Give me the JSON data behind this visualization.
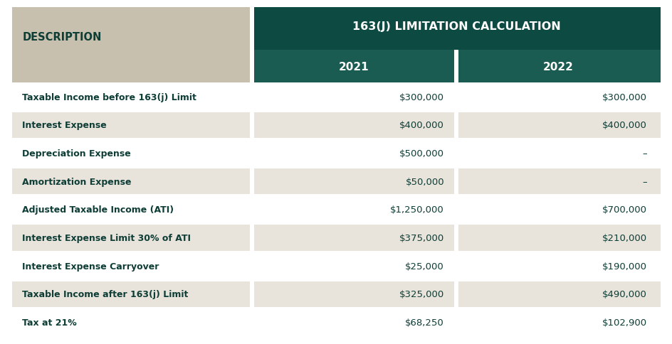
{
  "header_main": "163(J) LIMITATION CALCULATION",
  "header_desc": "DESCRIPTION",
  "col_headers": [
    "2021",
    "2022"
  ],
  "rows": [
    [
      "Taxable Income before 163(j) Limit",
      "$300,000",
      "$300,000"
    ],
    [
      "Interest Expense",
      "$400,000",
      "$400,000"
    ],
    [
      "Depreciation Expense",
      "$500,000",
      "–"
    ],
    [
      "Amortization Expense",
      "$50,000",
      "–"
    ],
    [
      "Adjusted Taxable Income (ATI)",
      "$1,250,000",
      "$700,000"
    ],
    [
      "Interest Expense Limit 30% of ATI",
      "$375,000",
      "$210,000"
    ],
    [
      "Interest Expense Carryover",
      "$25,000",
      "$190,000"
    ],
    [
      "Taxable Income after 163(j) Limit",
      "$325,000",
      "$490,000"
    ],
    [
      "Tax at 21%",
      "$68,250",
      "$102,900"
    ]
  ],
  "color_header_dark": "#0d4a42",
  "color_header_mid": "#1a5c52",
  "color_header_light": "#c8c0ae",
  "color_row_light": "#e8e4dc",
  "color_row_white": "#ffffff",
  "color_text_dark": "#0d3d35",
  "color_text_header": "#ffffff",
  "color_border": "#ffffff",
  "fig_width": 9.45,
  "fig_height": 4.85
}
